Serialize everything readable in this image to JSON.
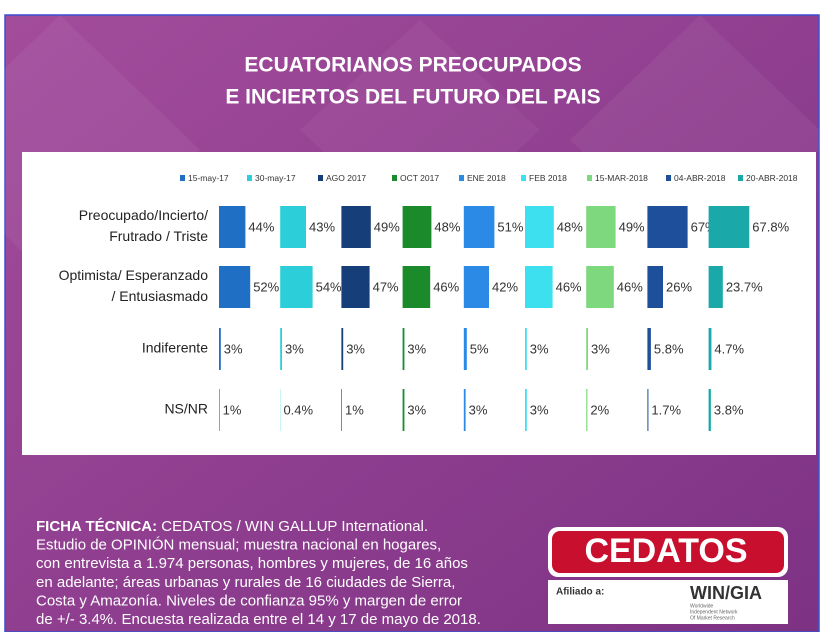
{
  "chart_data": {
    "type": "bar",
    "title": [
      "ECUATORIANOS PREOCUPADOS",
      "E INCIERTOS DEL FUTURO DEL PAIS"
    ],
    "categories": [
      [
        "Preocupado/Incierto/",
        "Frutrado / Triste"
      ],
      [
        "Optimista/ Esperanzado",
        "/ Entusiasmado"
      ],
      [
        "Indiferente"
      ],
      [
        "NS/NR"
      ]
    ],
    "series": [
      {
        "name": "15-may-17",
        "color": "#1f6fc4",
        "values": [
          44,
          52,
          3,
          1
        ],
        "value_labels": [
          "44%",
          "52%",
          "3%",
          "1%"
        ]
      },
      {
        "name": "30-may-17",
        "color": "#2ccfd9",
        "values": [
          43,
          54,
          3,
          0.4
        ],
        "value_labels": [
          "43%",
          "54%",
          "3%",
          "0.4%"
        ]
      },
      {
        "name": "AGO 2017",
        "color": "#163f7a",
        "values": [
          49,
          47,
          3,
          1
        ],
        "value_labels": [
          "49%",
          "47%",
          "3%",
          "1%"
        ]
      },
      {
        "name": "OCT 2017",
        "color": "#1a8a2a",
        "values": [
          48,
          46,
          3,
          3
        ],
        "value_labels": [
          "48%",
          "46%",
          "3%",
          "3%"
        ]
      },
      {
        "name": "ENE 2018",
        "color": "#2a8ae6",
        "values": [
          51,
          42,
          5,
          3
        ],
        "value_labels": [
          "51%",
          "42%",
          "5%",
          "3%"
        ]
      },
      {
        "name": "FEB 2018",
        "color": "#3de0ee",
        "values": [
          48,
          46,
          3,
          3
        ],
        "value_labels": [
          "48%",
          "46%",
          "3%",
          "3%"
        ]
      },
      {
        "name": "15-MAR-2018",
        "color": "#7ed87e",
        "values": [
          49,
          46,
          3,
          2
        ],
        "value_labels": [
          "49%",
          "46%",
          "3%",
          "2%"
        ]
      },
      {
        "name": "04-ABR-2018",
        "color": "#1d4f9a",
        "values": [
          67,
          26,
          5.8,
          1.7
        ],
        "value_labels": [
          "67%",
          "26%",
          "5.8%",
          "1.7%"
        ]
      },
      {
        "name": "20-ABR-2018",
        "color": "#1aa8a8",
        "values": [
          67.8,
          23.7,
          4.7,
          3.8
        ],
        "value_labels": [
          "67.8%",
          "23.7%",
          "4.7%",
          "3.8%"
        ]
      }
    ]
  },
  "footer": {
    "label": "FICHA TÉCNICA:",
    "lines": [
      " CEDATOS / WIN GALLUP International.",
      "Estudio de OPINIÓN mensual; muestra nacional en hogares,",
      "con entrevista a 1.974 personas, hombres y mujeres, de 16 años",
      "en adelante; áreas urbanas y rurales de 16 ciudades de Sierra,",
      "Costa y Amazonía. Niveles de confianza 95% y margen de error",
      "de +/- 3.4%. Encuesta realizada entre el 14 y 17 de mayo de 2018."
    ]
  },
  "logo": {
    "name": "CEDATOS",
    "affiliate": "Afiliado a:",
    "partner": "WIN/GIA",
    "partner_note": [
      "Worldwide",
      "Independent Network",
      "Of Market Research"
    ]
  }
}
